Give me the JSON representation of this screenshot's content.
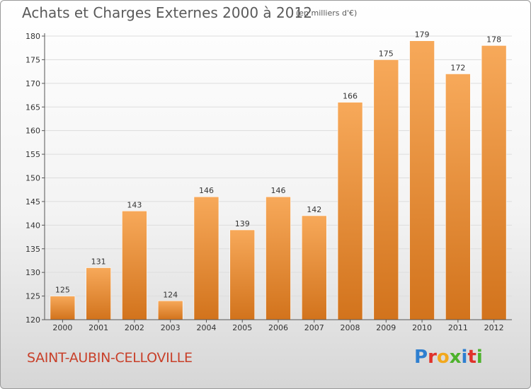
{
  "header": {
    "title": "Achats et Charges Externes 2000 à 2012",
    "unit": "(en milliers d'€)"
  },
  "footer": {
    "city": "SAINT-AUBIN-CELLOVILLE",
    "brand": [
      "P",
      "r",
      "o",
      "x",
      "i",
      "t",
      "i"
    ],
    "brand_colors": [
      "#2e7fd0",
      "#e0322b",
      "#f2a81d",
      "#4db22c",
      "#2e7fd0",
      "#e0322b",
      "#4db22c"
    ]
  },
  "colors": {
    "bar_light": "#f7a95a",
    "bar_dark": "#d2731c",
    "grid": "#dddddd",
    "axis": "#555555"
  },
  "chart_data": {
    "type": "bar",
    "title": "Achats et Charges Externes 2000 à 2012",
    "subtitle": "(en milliers d'€)",
    "xlabel": "",
    "ylabel": "",
    "categories": [
      "2000",
      "2001",
      "2002",
      "2003",
      "2004",
      "2005",
      "2006",
      "2007",
      "2008",
      "2009",
      "2010",
      "2011",
      "2012"
    ],
    "values": [
      125,
      131,
      143,
      124,
      146,
      139,
      146,
      142,
      166,
      175,
      179,
      172,
      178
    ],
    "ylim": [
      120,
      180
    ],
    "yticks": [
      120,
      125,
      130,
      135,
      140,
      145,
      150,
      155,
      160,
      165,
      170,
      175,
      180
    ],
    "grid": true,
    "legend": "none"
  }
}
